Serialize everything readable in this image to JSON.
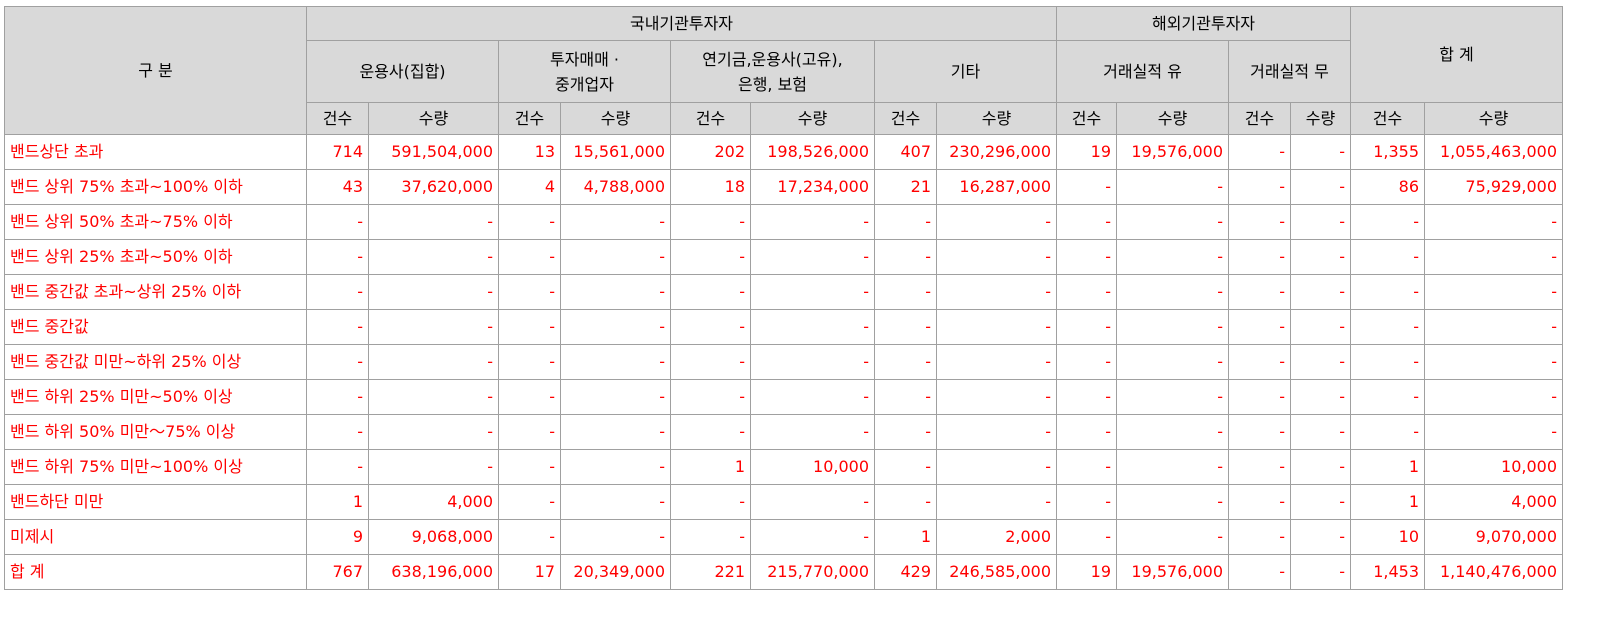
{
  "header": {
    "category": "구 분",
    "domestic": "국내기관투자자",
    "foreign": "해외기관투자자",
    "total": "합 계",
    "sub": [
      [
        "운용사(집합)"
      ],
      [
        "투자매매 ·",
        "중개업자"
      ],
      [
        "연기금,운용사(고유),",
        "은행, 보험"
      ],
      [
        "기타"
      ],
      [
        "거래실적 유"
      ],
      [
        "거래실적 무"
      ]
    ],
    "count": "건수",
    "qty": "수량"
  },
  "rows": [
    {
      "label": "밴드상단 초과",
      "values": [
        "714",
        "591,504,000",
        "13",
        "15,561,000",
        "202",
        "198,526,000",
        "407",
        "230,296,000",
        "19",
        "19,576,000",
        "-",
        "-",
        "1,355",
        "1,055,463,000"
      ]
    },
    {
      "label": "밴드 상위 75% 초과~100% 이하",
      "values": [
        "43",
        "37,620,000",
        "4",
        "4,788,000",
        "18",
        "17,234,000",
        "21",
        "16,287,000",
        "-",
        "-",
        "-",
        "-",
        "86",
        "75,929,000"
      ]
    },
    {
      "label": "밴드 상위 50% 초과~75% 이하",
      "values": [
        "-",
        "-",
        "-",
        "-",
        "-",
        "-",
        "-",
        "-",
        "-",
        "-",
        "-",
        "-",
        "-",
        "-"
      ]
    },
    {
      "label": "밴드 상위 25% 초과~50% 이하",
      "values": [
        "-",
        "-",
        "-",
        "-",
        "-",
        "-",
        "-",
        "-",
        "-",
        "-",
        "-",
        "-",
        "-",
        "-"
      ]
    },
    {
      "label": "밴드 중간값 초과~상위 25% 이하",
      "values": [
        "-",
        "-",
        "-",
        "-",
        "-",
        "-",
        "-",
        "-",
        "-",
        "-",
        "-",
        "-",
        "-",
        "-"
      ]
    },
    {
      "label": "밴드 중간값",
      "values": [
        "-",
        "-",
        "-",
        "-",
        "-",
        "-",
        "-",
        "-",
        "-",
        "-",
        "-",
        "-",
        "-",
        "-"
      ]
    },
    {
      "label": "밴드 중간값 미만~하위 25% 이상",
      "values": [
        "-",
        "-",
        "-",
        "-",
        "-",
        "-",
        "-",
        "-",
        "-",
        "-",
        "-",
        "-",
        "-",
        "-"
      ]
    },
    {
      "label": "밴드 하위 25% 미만~50% 이상",
      "values": [
        "-",
        "-",
        "-",
        "-",
        "-",
        "-",
        "-",
        "-",
        "-",
        "-",
        "-",
        "-",
        "-",
        "-"
      ]
    },
    {
      "label": "밴드 하위 50% 미만～75% 이상",
      "values": [
        "-",
        "-",
        "-",
        "-",
        "-",
        "-",
        "-",
        "-",
        "-",
        "-",
        "-",
        "-",
        "-",
        "-"
      ]
    },
    {
      "label": "밴드 하위 75% 미만~100% 이상",
      "values": [
        "-",
        "-",
        "-",
        "-",
        "1",
        "10,000",
        "-",
        "-",
        "-",
        "-",
        "-",
        "-",
        "1",
        "10,000"
      ]
    },
    {
      "label": "밴드하단 미만",
      "values": [
        "1",
        "4,000",
        "-",
        "-",
        "-",
        "-",
        "-",
        "-",
        "-",
        "-",
        "-",
        "-",
        "1",
        "4,000"
      ]
    },
    {
      "label": "미제시",
      "values": [
        "9",
        "9,068,000",
        "-",
        "-",
        "-",
        "-",
        "1",
        "2,000",
        "-",
        "-",
        "-",
        "-",
        "10",
        "9,070,000"
      ]
    },
    {
      "label": "합 계",
      "values": [
        "767",
        "638,196,000",
        "17",
        "20,349,000",
        "221",
        "215,770,000",
        "429",
        "246,585,000",
        "19",
        "19,576,000",
        "-",
        "-",
        "1,453",
        "1,140,476,000"
      ]
    }
  ],
  "colors": {
    "header_bg": "#d9d9d9",
    "border": "#a0a0a0",
    "text": "#ff0000"
  }
}
